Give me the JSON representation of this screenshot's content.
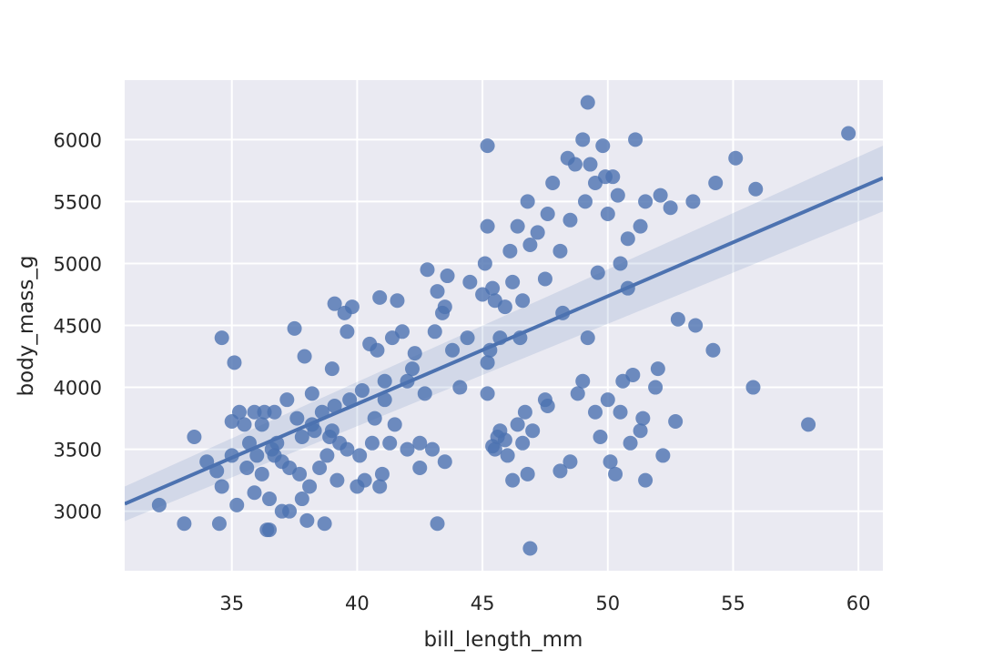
{
  "chart_data": {
    "type": "scatter",
    "xlabel": "bill_length_mm",
    "ylabel": "body_mass_g",
    "color": "#4c72b0",
    "background": "#eaeaf2",
    "grid": true,
    "xlim": [
      30.725,
      60.975
    ],
    "ylim": [
      2520,
      6480
    ],
    "xticks": [
      35,
      40,
      45,
      50,
      55,
      60
    ],
    "yticks": [
      3000,
      3500,
      4000,
      4500,
      5000,
      5500,
      6000
    ],
    "x": [
      32.1,
      33.1,
      33.5,
      34.0,
      34.4,
      34.5,
      34.6,
      34.6,
      35.0,
      35.0,
      35.1,
      35.3,
      35.2,
      35.5,
      35.6,
      35.7,
      35.9,
      35.9,
      36.0,
      36.2,
      36.2,
      36.3,
      36.4,
      36.5,
      36.5,
      36.6,
      36.7,
      36.7,
      37.0,
      37.0,
      37.2,
      37.3,
      37.3,
      37.5,
      37.6,
      37.7,
      37.8,
      37.8,
      37.9,
      38.0,
      38.1,
      38.2,
      38.2,
      38.5,
      38.6,
      38.7,
      38.8,
      38.9,
      39.0,
      39.1,
      39.1,
      39.2,
      39.5,
      39.6,
      39.6,
      39.7,
      39.8,
      40.1,
      40.2,
      40.3,
      40.5,
      40.6,
      40.7,
      40.8,
      40.9,
      41.1,
      41.1,
      41.3,
      41.4,
      41.5,
      41.6,
      41.8,
      42.0,
      42.2,
      42.3,
      42.5,
      42.5,
      42.7,
      42.8,
      43.1,
      43.2,
      43.2,
      43.4,
      43.5,
      43.6,
      43.8,
      44.1,
      44.4,
      44.5,
      39.0,
      39.3,
      40.0,
      40.9,
      41.0,
      38.3,
      36.8,
      42.0,
      43.0,
      43.5,
      45.0,
      45.1,
      45.2,
      45.2,
      45.2,
      45.3,
      45.4,
      45.5,
      45.7,
      45.9,
      46.1,
      46.2,
      46.4,
      46.5,
      46.6,
      46.8,
      46.9,
      47.2,
      47.5,
      47.6,
      47.8,
      48.1,
      48.2,
      48.4,
      48.5,
      48.7,
      49.0,
      49.1,
      49.2,
      49.3,
      49.5,
      49.6,
      49.8,
      49.9,
      50.0,
      50.2,
      50.4,
      50.5,
      50.8,
      51.1,
      51.3,
      51.5,
      52.1,
      52.5,
      53.4,
      54.3,
      55.1,
      55.9,
      59.6,
      50.8,
      45.2,
      45.4,
      45.5,
      45.6,
      45.7,
      45.9,
      46.0,
      46.2,
      46.4,
      46.6,
      46.7,
      46.8,
      46.9,
      47.0,
      47.5,
      47.6,
      48.1,
      48.5,
      48.8,
      49.0,
      49.2,
      49.5,
      49.7,
      50.0,
      50.1,
      50.3,
      50.5,
      50.6,
      50.9,
      51.0,
      51.3,
      51.4,
      51.5,
      51.9,
      52.0,
      52.2,
      52.7,
      52.8,
      53.5,
      54.2,
      55.8,
      58.0
    ],
    "y": [
      3050,
      2900,
      3600,
      3400,
      3325,
      2900,
      4400,
      3200,
      3450,
      3725,
      4200,
      3800,
      3050,
      3700,
      3350,
      3550,
      3800,
      3150,
      3450,
      3700,
      3300,
      3800,
      2850,
      2850,
      3100,
      3500,
      3800,
      3450,
      3400,
      3000,
      3900,
      3350,
      3000,
      4475,
      3750,
      3300,
      3600,
      3100,
      4250,
      2925,
      3200,
      3950,
      3700,
      3350,
      3800,
      2900,
      3450,
      3600,
      4150,
      3850,
      4675,
      3250,
      4600,
      4450,
      3500,
      3900,
      4650,
      3450,
      3975,
      3250,
      4350,
      3550,
      3750,
      4300,
      4725,
      3900,
      4050,
      3550,
      4400,
      3700,
      4700,
      4450,
      4050,
      4150,
      4275,
      3350,
      3550,
      3950,
      4950,
      4450,
      4775,
      2900,
      4600,
      4650,
      4900,
      4300,
      4000,
      4400,
      4850,
      3650,
      3550,
      3200,
      3200,
      3300,
      3650,
      3550,
      3500,
      3500,
      3400,
      4750,
      5000,
      5950,
      5300,
      4200,
      4300,
      4800,
      4700,
      4400,
      4650,
      5100,
      4850,
      5300,
      4400,
      4700,
      5500,
      5150,
      5250,
      4875,
      5400,
      5650,
      5100,
      4600,
      5850,
      5350,
      5800,
      6000,
      5500,
      6300,
      5800,
      5650,
      4925,
      5950,
      5700,
      5400,
      5700,
      5550,
      5000,
      5200,
      6000,
      5300,
      5500,
      5550,
      5450,
      5500,
      5650,
      5850,
      5600,
      6050,
      4800,
      3950,
      3525,
      3500,
      3600,
      3650,
      3575,
      3450,
      3250,
      3700,
      3550,
      3800,
      3300,
      2700,
      3650,
      3900,
      3850,
      3325,
      3400,
      3950,
      4050,
      4400,
      3800,
      3600,
      3900,
      3400,
      3300,
      3800,
      4050,
      3550,
      4100,
      3650,
      3750,
      3250,
      4000,
      4150,
      3450,
      3725,
      4550,
      4500,
      4300,
      4000,
      3700
    ],
    "regression": {
      "x": [
        30.725,
        60.975
      ],
      "y": [
        3060,
        5690
      ],
      "ci_lower": [
        2920,
        5420
      ],
      "ci_upper": [
        3200,
        5950
      ]
    }
  }
}
